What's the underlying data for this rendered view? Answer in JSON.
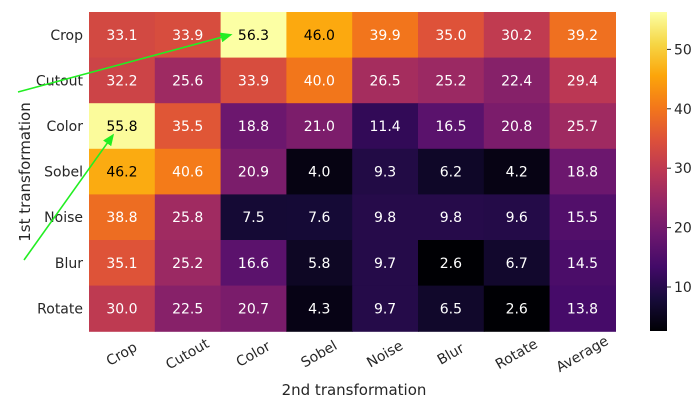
{
  "chart_data": {
    "type": "heatmap",
    "xlabel": "2nd transformation",
    "ylabel": "1st transformation",
    "x_categories": [
      "Crop",
      "Cutout",
      "Color",
      "Sobel",
      "Noise",
      "Blur",
      "Rotate",
      "Average"
    ],
    "y_categories": [
      "Crop",
      "Cutout",
      "Color",
      "Sobel",
      "Noise",
      "Blur",
      "Rotate"
    ],
    "values": [
      [
        33.1,
        33.9,
        56.3,
        46.0,
        39.9,
        35.0,
        30.2,
        39.2
      ],
      [
        32.2,
        25.6,
        33.9,
        40.0,
        26.5,
        25.2,
        22.4,
        29.4
      ],
      [
        55.8,
        35.5,
        18.8,
        21.0,
        11.4,
        16.5,
        20.8,
        25.7
      ],
      [
        46.2,
        40.6,
        20.9,
        4.0,
        9.3,
        6.2,
        4.2,
        18.8
      ],
      [
        38.8,
        25.8,
        7.5,
        7.6,
        9.8,
        9.8,
        9.6,
        15.5
      ],
      [
        35.1,
        25.2,
        16.6,
        5.8,
        9.7,
        2.6,
        6.7,
        14.5
      ],
      [
        30.0,
        22.5,
        20.7,
        4.3,
        9.7,
        6.5,
        2.6,
        13.8
      ]
    ],
    "colormap": "inferno",
    "color_range": [
      2.6,
      56.3
    ],
    "colorbar_ticks": [
      10,
      20,
      30,
      40,
      50
    ],
    "annotations": [
      {
        "type": "arrow",
        "color": "#22ee22",
        "target_cell": {
          "row": 0,
          "col": 2
        }
      },
      {
        "type": "arrow",
        "color": "#22ee22",
        "target_cell": {
          "row": 2,
          "col": 0
        }
      }
    ]
  }
}
